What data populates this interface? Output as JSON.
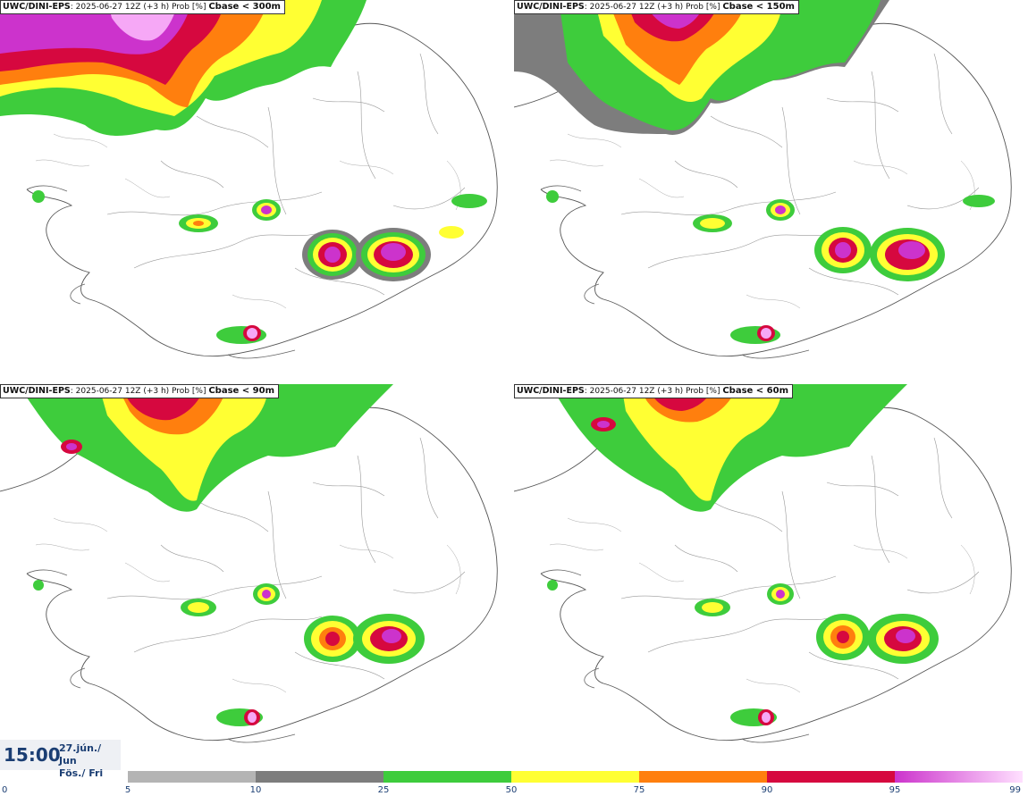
{
  "panels": [
    {
      "source": "UWC/DINI-EPS",
      "info": ": 2025-06-27 12Z (+3 h) Prob [%]",
      "variable": "Cbase < 300m"
    },
    {
      "source": "UWC/DINI-EPS",
      "info": ": 2025-06-27 12Z (+3 h) Prob [%]",
      "variable": "Cbase < 150m"
    },
    {
      "source": "UWC/DINI-EPS",
      "info": ": 2025-06-27 12Z (+3 h) Prob [%]",
      "variable": "Cbase < 90m"
    },
    {
      "source": "UWC/DINI-EPS",
      "info": ": 2025-06-27 12Z (+3 h) Prob [%]",
      "variable": "Cbase < 60m"
    }
  ],
  "valid_time": {
    "time": "15:00",
    "date_line1": "27.jún./ Jun",
    "date_line2": "Fös./ Fri"
  },
  "colorbar": {
    "ticks": [
      "0",
      "5",
      "10",
      "25",
      "50",
      "75",
      "90",
      "95",
      "99"
    ],
    "bands": [
      {
        "from": 5,
        "to": 10,
        "color": "#b4b4b4"
      },
      {
        "from": 10,
        "to": 25,
        "color": "#7d7d7d"
      },
      {
        "from": 25,
        "to": 50,
        "color": "#3ecc3c"
      },
      {
        "from": 50,
        "to": 75,
        "color": "#ffff33"
      },
      {
        "from": 75,
        "to": 90,
        "color": "#ff7f0e"
      },
      {
        "from": 90,
        "to": 95,
        "color": "#d6083f"
      },
      {
        "from": 95,
        "to": 99,
        "color": "#cc33cc",
        "color_end": "#ffe0ff"
      }
    ]
  }
}
